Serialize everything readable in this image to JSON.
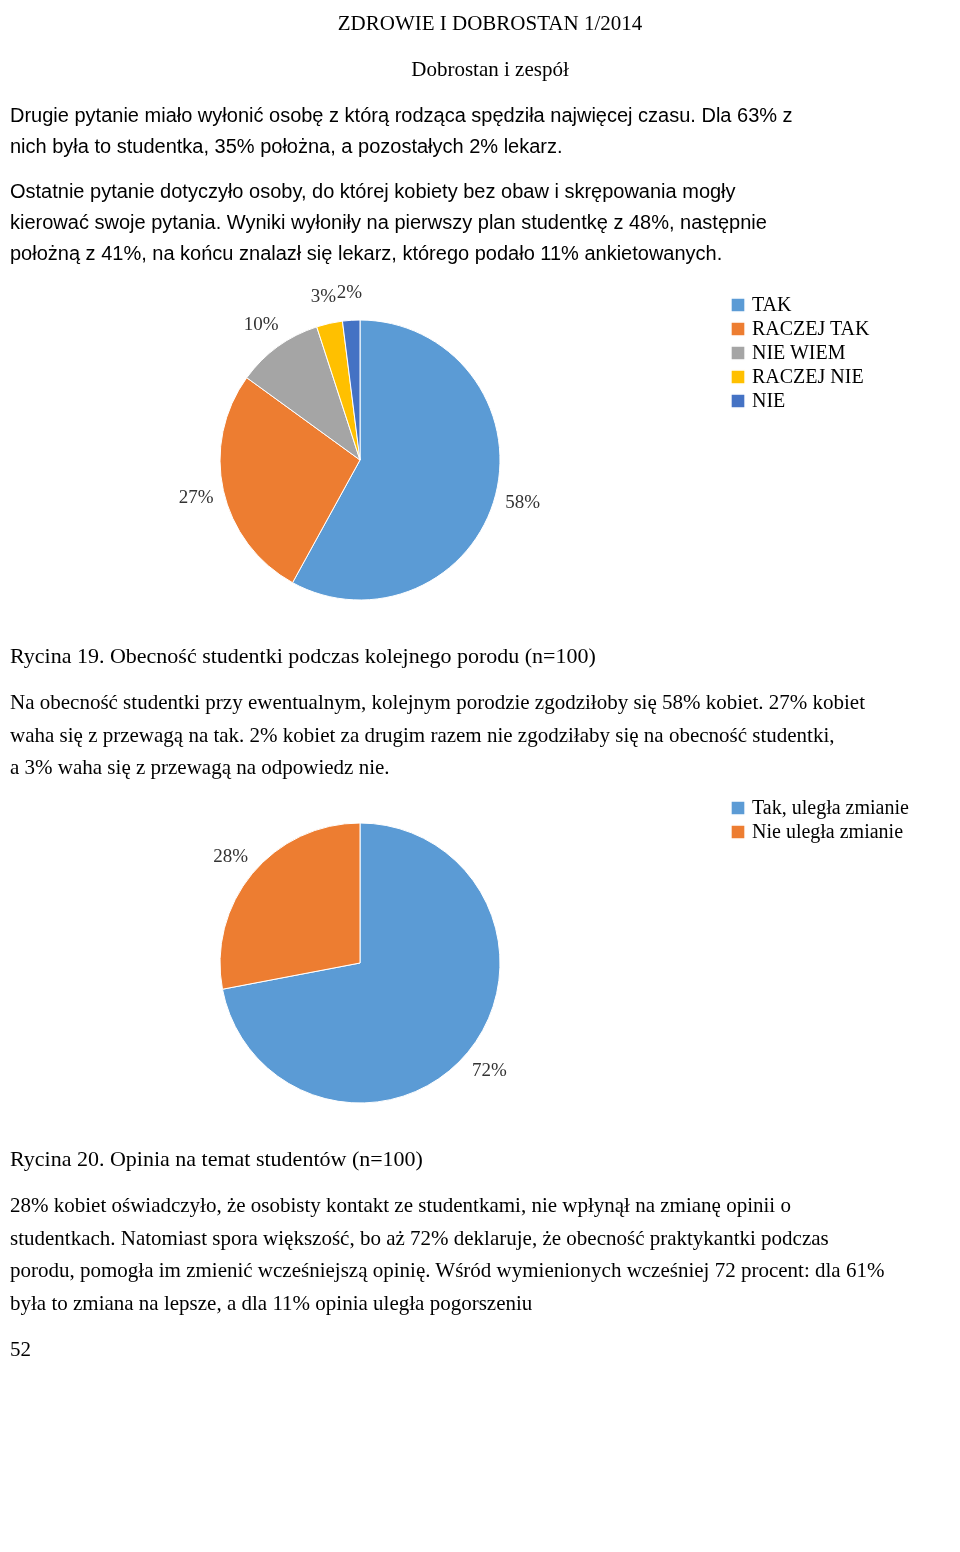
{
  "chart_data": [
    {
      "type": "pie",
      "title": "Rycina 19. Obecność studentki podczas kolejnego porodu (n=100)",
      "annotations": [
        "ZDROWIE I DOBROSTAN 1/2014",
        "Dobrostan i zespół",
        "Drugie pytanie miało wyłonić osobę z którą rodząca spędziła najwięcej czasu. Dla 63% z nich była to studentka, 35% położna, a pozostałych 2% lekarz.",
        "Ostatnie pytanie dotyczyło osoby, do której kobiety bez obaw i skrępowania mogły kierować swoje pytania. Wyniki wyłoniły na pierwszy plan studentkę z 48%, następnie położną z 41%, na końcu znalazł się lekarz, którego podało 11% ankietowanych."
      ],
      "categories": [
        "TAK",
        "RACZEJ TAK",
        "NIE WIEM",
        "RACZEJ NIE",
        "NIE"
      ],
      "values": [
        58,
        27,
        10,
        3,
        2
      ],
      "value_labels": [
        "58%",
        "27%",
        "10%",
        "3%",
        "2%"
      ],
      "colors": [
        "#5b9bd5",
        "#ed7d31",
        "#a5a5a5",
        "#ffc000",
        "#4472c4"
      ],
      "legend": "right"
    },
    {
      "type": "pie",
      "title": "Rycina 20. Opinia na temat studentów (n=100)",
      "annotations": [
        "Na obecność studentki przy ewentualnym, kolejnym porodzie zgodziłoby się 58% kobiet. 27% kobiet waha się z przewagą na tak. 2% kobiet za drugim razem nie zgodziłaby się na obecność studentki, a 3% waha się z przewagą na odpowiedz nie.",
        "28% kobiet oświadczyło, że osobisty kontakt ze studentkami, nie wpłynął na zmianę opinii o studentkach. Natomiast spora większość, bo aż 72% deklaruje, że obecność praktykantki podczas porodu, pomogła im zmienić wcześniejszą opinię. Wśród wymienionych wcześniej 72 procent: dla 61% była to zmiana na lepsze, a dla 11% opinia uległa pogorszeniu",
        "52"
      ],
      "categories": [
        "Tak, uległa zmianie",
        "Nie uległa zmianie"
      ],
      "values": [
        72,
        28
      ],
      "value_labels": [
        "72%",
        "28%"
      ],
      "colors": [
        "#5b9bd5",
        "#ed7d31"
      ],
      "legend": "right"
    }
  ]
}
